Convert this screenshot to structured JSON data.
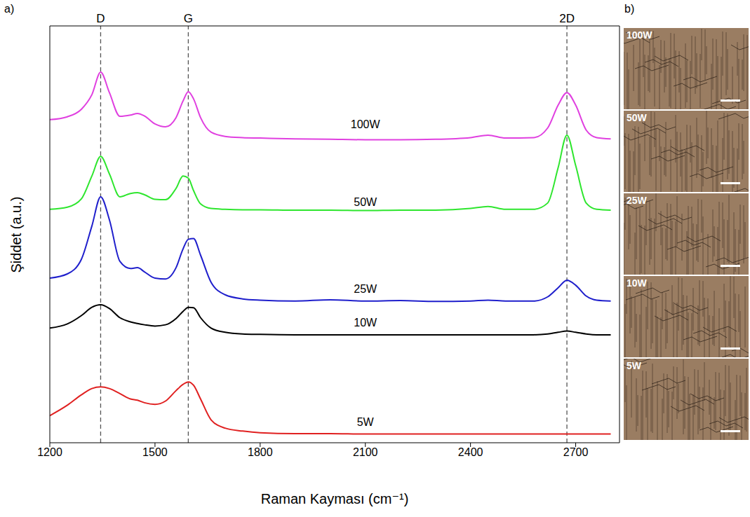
{
  "chart_data": {
    "type": "line",
    "panel_label": "a)",
    "x_label": "Raman Kayması (cm⁻¹)",
    "y_label": "Şiddet (a.u.)",
    "xlim": [
      1200,
      2825
    ],
    "xticks": [
      1200,
      1500,
      1800,
      2100,
      2400,
      2700
    ],
    "ylim": [
      0,
      100
    ],
    "tick_labels": "x",
    "grid": false,
    "x": [
      1200,
      1250,
      1290,
      1320,
      1345,
      1370,
      1400,
      1430,
      1450,
      1470,
      1500,
      1530,
      1560,
      1580,
      1595,
      1610,
      1630,
      1660,
      1700,
      1750,
      1800,
      1900,
      2000,
      2100,
      2200,
      2300,
      2400,
      2450,
      2500,
      2580,
      2620,
      2650,
      2675,
      2700,
      2730,
      2760,
      2800
    ],
    "series": [
      {
        "name": "100W",
        "color": "#e040e0",
        "values": [
          77.5,
          78.2,
          80.0,
          83.5,
          88.9,
          84.0,
          78.3,
          78.6,
          79.0,
          78.4,
          76.5,
          75.8,
          78.0,
          82.0,
          84.2,
          82.5,
          78.0,
          74.5,
          73.5,
          73.2,
          73.1,
          72.9,
          72.8,
          72.7,
          72.7,
          72.8,
          73.2,
          73.8,
          73.1,
          73.2,
          75.5,
          81.0,
          84.0,
          81.0,
          75.0,
          73.2,
          72.9
        ]
      },
      {
        "name": "50W",
        "color": "#2ee62e",
        "values": [
          56.0,
          56.5,
          58.5,
          64.0,
          68.7,
          64.5,
          59.0,
          59.8,
          60.0,
          59.5,
          58.4,
          58.3,
          61.0,
          64.0,
          63.5,
          60.5,
          57.3,
          56.2,
          56.0,
          55.9,
          55.9,
          55.8,
          55.8,
          55.7,
          55.8,
          55.8,
          56.2,
          56.7,
          56.0,
          56.0,
          57.5,
          66.0,
          73.8,
          66.5,
          57.5,
          56.0,
          55.8
        ]
      },
      {
        "name": "25W",
        "color": "#1f1fcc",
        "values": [
          39.5,
          40.5,
          44.0,
          52.0,
          59.0,
          53.5,
          43.5,
          41.8,
          42.0,
          41.0,
          39.5,
          39.3,
          42.0,
          46.5,
          48.8,
          49.0,
          45.0,
          38.5,
          35.5,
          34.5,
          34.2,
          34.0,
          34.3,
          34.0,
          34.1,
          33.9,
          34.0,
          34.2,
          34.0,
          34.0,
          35.0,
          37.2,
          39.0,
          37.8,
          35.2,
          34.2,
          34.0
        ]
      },
      {
        "name": "10W",
        "color": "#000000",
        "values": [
          27.5,
          28.5,
          30.5,
          32.5,
          33.1,
          32.2,
          30.0,
          29.0,
          28.6,
          28.3,
          28.0,
          28.3,
          29.8,
          31.5,
          32.5,
          32.4,
          30.0,
          27.5,
          26.5,
          26.1,
          26.0,
          25.9,
          25.9,
          25.9,
          25.9,
          25.9,
          25.9,
          25.9,
          25.9,
          25.9,
          26.1,
          26.5,
          26.8,
          26.5,
          26.1,
          25.9,
          25.9
        ]
      },
      {
        "name": "5W",
        "color": "#e02020",
        "values": [
          6.5,
          9.0,
          11.5,
          13.0,
          13.4,
          13.0,
          11.8,
          10.5,
          10.2,
          9.6,
          9.2,
          10.0,
          12.5,
          14.0,
          14.6,
          13.8,
          10.5,
          5.5,
          3.5,
          2.8,
          2.4,
          2.2,
          2.2,
          2.1,
          2.1,
          2.1,
          2.1,
          2.1,
          2.1,
          2.1,
          2.1,
          2.1,
          2.1,
          2.1,
          2.1,
          2.1,
          2.1
        ]
      }
    ],
    "peaks": [
      {
        "label": "D",
        "x": 1345
      },
      {
        "label": "G",
        "x": 1595
      },
      {
        "label": "2D",
        "x": 2675
      }
    ],
    "annotations": [
      {
        "text": "100W",
        "x": 2100,
        "y": 76.5
      },
      {
        "text": "50W",
        "x": 2100,
        "y": 57.8
      },
      {
        "text": "25W",
        "x": 2100,
        "y": 37.0
      },
      {
        "text": "10W",
        "x": 2100,
        "y": 28.8
      },
      {
        "text": "5W",
        "x": 2100,
        "y": 5.0
      }
    ]
  },
  "micrographs": {
    "panel_label": "b)",
    "labels": [
      "100W",
      "50W",
      "25W",
      "10W",
      "5W"
    ]
  }
}
